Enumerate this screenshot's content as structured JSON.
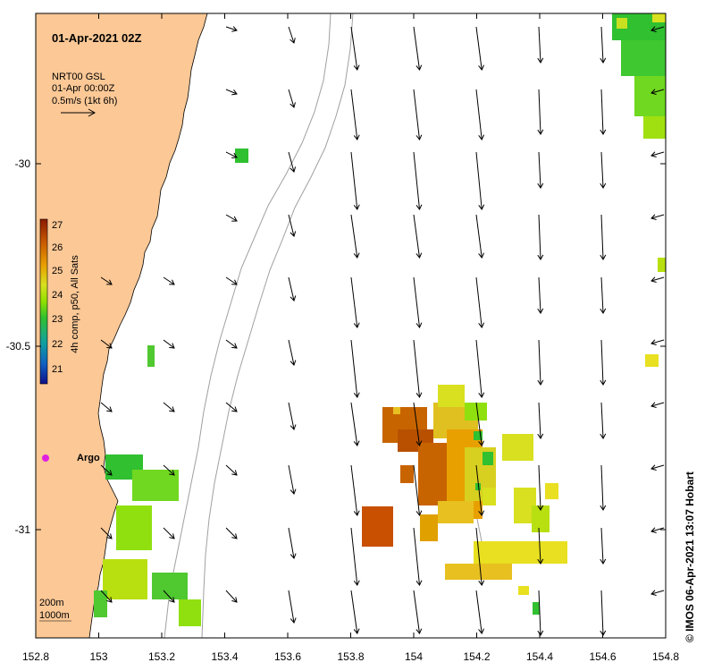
{
  "map": {
    "title": "01-Apr-2021 02Z",
    "legend_lines": [
      "NRT00 GSL",
      "01-Apr 00:00Z",
      "0.5m/s (1kt 6h)"
    ],
    "colorbar": {
      "label": "4h comp, p50, All Sats",
      "ticks": [
        "27",
        "26",
        "25",
        "24",
        "23",
        "22",
        "21"
      ],
      "colors": [
        "#8b1a00",
        "#c85a00",
        "#e8a000",
        "#d8e020",
        "#90e000",
        "#30c030",
        "#10a0a0",
        "#1060c0",
        "#10108a"
      ]
    },
    "argo_label": "Argo",
    "depth_labels": [
      "200m",
      "1000m"
    ],
    "credit": "© IMOS 06-Apr-2021 13:07 Hobart",
    "x_ticks": [
      "152.8",
      "153",
      "153.2",
      "153.4",
      "153.6",
      "153.8",
      "154",
      "154.2",
      "154.4",
      "154.6",
      "154.8"
    ],
    "y_ticks": [
      "-30",
      "-30.5",
      "-31"
    ],
    "colors": {
      "land": "#fbc896",
      "contour": "#a0a0a0",
      "argo": "#e020e0"
    }
  }
}
